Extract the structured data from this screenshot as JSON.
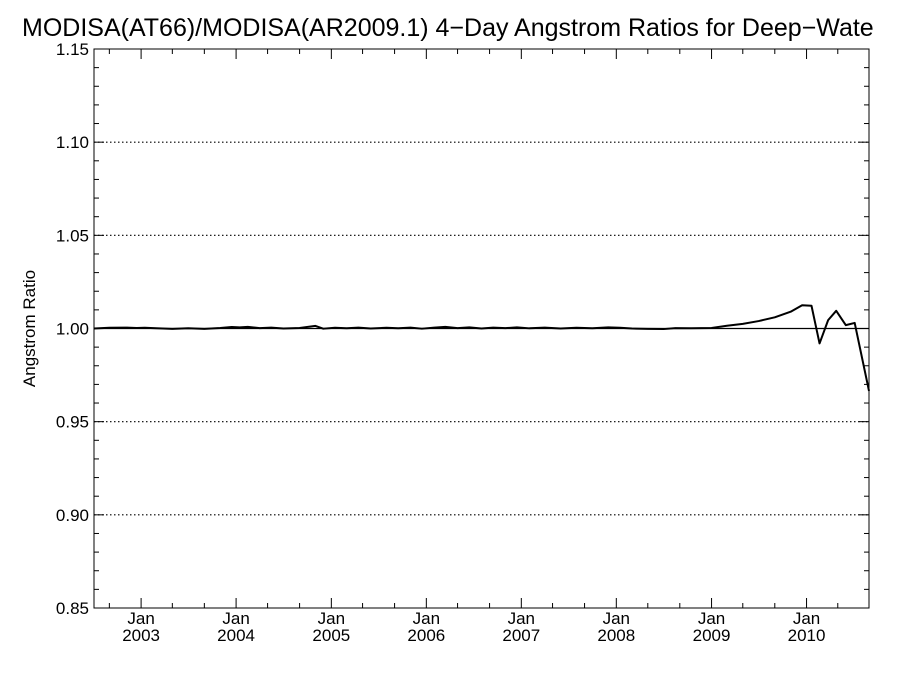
{
  "chart_data": {
    "type": "line",
    "title": "MODISA(AT66)/MODISA(AR2009.1) 4−Day Angstrom Ratios for Deep−Wate",
    "xlabel": "",
    "ylabel": "Angstrom Ratio",
    "xlim": [
      "2002-07-04",
      "2010-08-29"
    ],
    "ylim": [
      0.85,
      1.15
    ],
    "y_ticks": [
      "0.85",
      "0.90",
      "0.95",
      "1.00",
      "1.05",
      "1.10",
      "1.15"
    ],
    "y_gridlines": [
      0.9,
      0.95,
      1.05,
      1.1
    ],
    "reference_line": 1.0,
    "x_ticks": [
      {
        "date": "2003-01-01",
        "month": "Jan",
        "year": "2003"
      },
      {
        "date": "2004-01-01",
        "month": "Jan",
        "year": "2004"
      },
      {
        "date": "2005-01-01",
        "month": "Jan",
        "year": "2005"
      },
      {
        "date": "2006-01-01",
        "month": "Jan",
        "year": "2006"
      },
      {
        "date": "2007-01-01",
        "month": "Jan",
        "year": "2007"
      },
      {
        "date": "2008-01-01",
        "month": "Jan",
        "year": "2008"
      },
      {
        "date": "2009-01-01",
        "month": "Jan",
        "year": "2009"
      },
      {
        "date": "2010-01-01",
        "month": "Jan",
        "year": "2010"
      }
    ],
    "grid": "dotted horizontal at major y ticks",
    "series": [
      {
        "color": "#000000",
        "points": [
          [
            "2002-07-04",
            1.0
          ],
          [
            "2002-09-01",
            1.0004
          ],
          [
            "2002-11-01",
            1.0005
          ],
          [
            "2002-12-15",
            1.0003
          ],
          [
            "2003-01-15",
            1.0004
          ],
          [
            "2003-03-01",
            1.0001
          ],
          [
            "2003-05-01",
            0.9998
          ],
          [
            "2003-07-01",
            1.0001
          ],
          [
            "2003-09-01",
            0.9998
          ],
          [
            "2003-11-01",
            1.0003
          ],
          [
            "2003-12-15",
            1.0008
          ],
          [
            "2004-01-15",
            1.0006
          ],
          [
            "2004-02-15",
            1.0009
          ],
          [
            "2004-04-01",
            1.0002
          ],
          [
            "2004-05-15",
            1.0005
          ],
          [
            "2004-07-01",
            1.0
          ],
          [
            "2004-09-01",
            1.0003
          ],
          [
            "2004-11-01",
            1.0014
          ],
          [
            "2004-12-01",
            0.9999
          ],
          [
            "2005-01-15",
            1.0004
          ],
          [
            "2005-03-01",
            1.0001
          ],
          [
            "2005-04-15",
            1.0005
          ],
          [
            "2005-06-01",
            1.0
          ],
          [
            "2005-08-01",
            1.0004
          ],
          [
            "2005-09-15",
            1.0001
          ],
          [
            "2005-11-01",
            1.0005
          ],
          [
            "2005-12-15",
            0.9999
          ],
          [
            "2006-02-01",
            1.0005
          ],
          [
            "2006-03-15",
            1.0009
          ],
          [
            "2006-05-01",
            1.0002
          ],
          [
            "2006-06-15",
            1.0006
          ],
          [
            "2006-08-01",
            1.0
          ],
          [
            "2006-09-15",
            1.0005
          ],
          [
            "2006-11-01",
            1.0002
          ],
          [
            "2006-12-15",
            1.0006
          ],
          [
            "2007-02-01",
            1.0001
          ],
          [
            "2007-04-01",
            1.0005
          ],
          [
            "2007-06-01",
            1.0
          ],
          [
            "2007-08-01",
            1.0004
          ],
          [
            "2007-10-01",
            1.0001
          ],
          [
            "2007-12-01",
            1.0006
          ],
          [
            "2008-01-15",
            1.0004
          ],
          [
            "2008-03-01",
            1.0
          ],
          [
            "2008-05-01",
            0.9998
          ],
          [
            "2008-07-01",
            0.9997
          ],
          [
            "2008-08-15",
            1.0002
          ],
          [
            "2008-10-15",
            1.0001
          ],
          [
            "2009-01-01",
            1.0003
          ],
          [
            "2009-03-01",
            1.0015
          ],
          [
            "2009-05-01",
            1.0025
          ],
          [
            "2009-07-01",
            1.004
          ],
          [
            "2009-09-01",
            1.006
          ],
          [
            "2009-11-01",
            1.009
          ],
          [
            "2009-12-15",
            1.0125
          ],
          [
            "2010-01-20",
            1.0122
          ],
          [
            "2010-02-20",
            0.992
          ],
          [
            "2010-03-25",
            1.0045
          ],
          [
            "2010-04-25",
            1.0095
          ],
          [
            "2010-06-01",
            1.0018
          ],
          [
            "2010-07-05",
            1.003
          ],
          [
            "2010-08-29",
            0.9665
          ]
        ]
      }
    ]
  }
}
